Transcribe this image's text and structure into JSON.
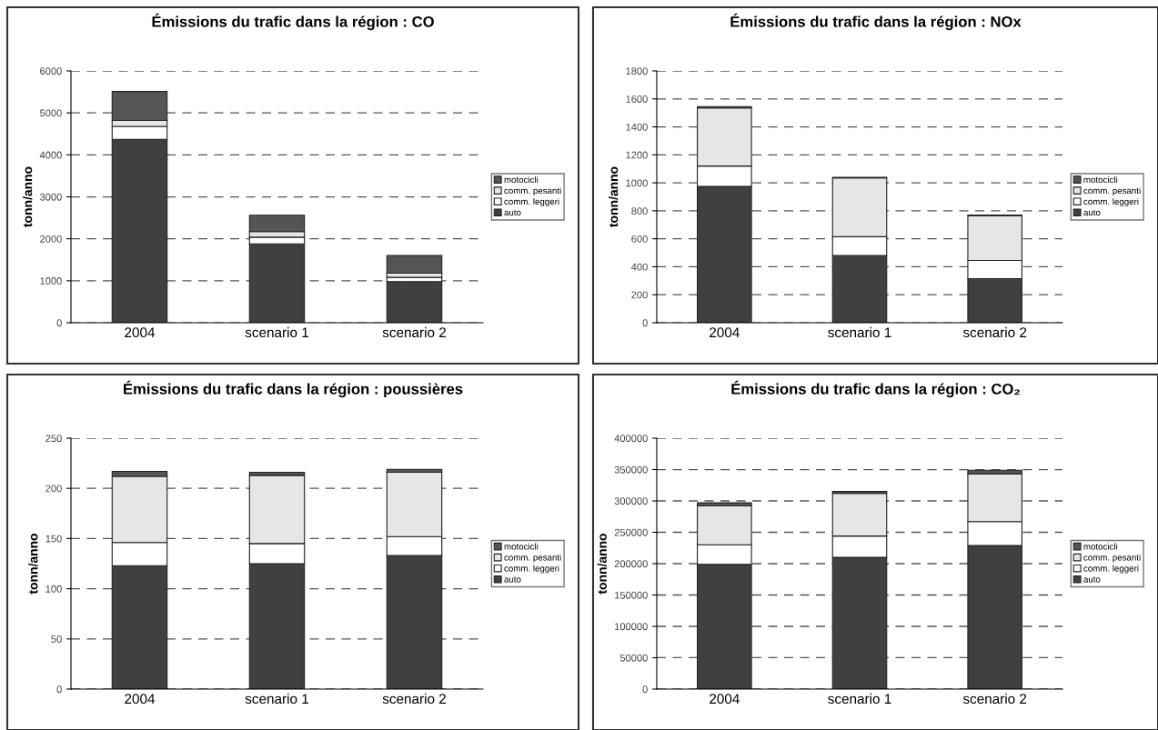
{
  "chart_data": [
    {
      "type": "bar",
      "stacked": true,
      "title": "Émissions du trafic dans la région : CO",
      "ylabel": "tonn/anno",
      "categories": [
        "2004",
        "scenario 1",
        "scenario 2"
      ],
      "ylim": [
        0,
        6000
      ],
      "yticks": [
        0,
        1000,
        2000,
        3000,
        4000,
        5000,
        6000
      ],
      "grid": "y",
      "legend": "right",
      "series": [
        {
          "name": "auto",
          "color": "#404040",
          "values": [
            4370,
            1880,
            980
          ]
        },
        {
          "name": "comm. leggeri",
          "color": "#ffffff",
          "values": [
            310,
            160,
            100
          ]
        },
        {
          "name": "comm. pesanti",
          "color": "#e6e6e6",
          "values": [
            140,
            130,
            100
          ]
        },
        {
          "name": "motocicli",
          "color": "#555555",
          "values": [
            690,
            390,
            420
          ]
        }
      ]
    },
    {
      "type": "bar",
      "stacked": true,
      "title": "Émissions du trafic dans la région : NOx",
      "ylabel": "tonn/anno",
      "categories": [
        "2004",
        "scenario 1",
        "scenario 2"
      ],
      "ylim": [
        0,
        1800
      ],
      "yticks": [
        0,
        200,
        400,
        600,
        800,
        1000,
        1200,
        1400,
        1600,
        1800
      ],
      "grid": "y",
      "legend": "right",
      "series": [
        {
          "name": "auto",
          "color": "#404040",
          "values": [
            975,
            480,
            315
          ]
        },
        {
          "name": "comm. leggeri",
          "color": "#ffffff",
          "values": [
            145,
            135,
            130
          ]
        },
        {
          "name": "comm. pesanti",
          "color": "#e6e6e6",
          "values": [
            415,
            420,
            320
          ]
        },
        {
          "name": "motocicli",
          "color": "#555555",
          "values": [
            10,
            5,
            5
          ]
        }
      ]
    },
    {
      "type": "bar",
      "stacked": true,
      "title": "Émissions du trafic dans la région : poussières",
      "ylabel": "tonn/anno",
      "categories": [
        "2004",
        "scenario 1",
        "scenario 2"
      ],
      "ylim": [
        0,
        250
      ],
      "yticks": [
        0,
        50,
        100,
        150,
        200,
        250
      ],
      "grid": "y",
      "legend": "right",
      "series": [
        {
          "name": "auto",
          "color": "#404040",
          "values": [
            123,
            125,
            133
          ]
        },
        {
          "name": "comm. leggeri",
          "color": "#ffffff",
          "values": [
            23,
            20,
            19
          ]
        },
        {
          "name": "comm. pesanti",
          "color": "#e6e6e6",
          "values": [
            66,
            68,
            64
          ]
        },
        {
          "name": "motocicli",
          "color": "#555555",
          "values": [
            5,
            3,
            3
          ]
        }
      ]
    },
    {
      "type": "bar",
      "stacked": true,
      "title": "Émissions du trafic dans la région : CO₂",
      "ylabel": "tonn/anno",
      "categories": [
        "2004",
        "scenario 1",
        "scenario 2"
      ],
      "ylim": [
        0,
        400000
      ],
      "yticks": [
        0,
        50000,
        100000,
        150000,
        200000,
        250000,
        300000,
        350000,
        400000
      ],
      "grid": "y",
      "legend": "right",
      "series": [
        {
          "name": "auto",
          "color": "#404040",
          "values": [
            199000,
            210000,
            229000
          ]
        },
        {
          "name": "comm. leggeri",
          "color": "#ffffff",
          "values": [
            31000,
            34000,
            38000
          ]
        },
        {
          "name": "comm. pesanti",
          "color": "#e6e6e6",
          "values": [
            62000,
            68000,
            76000
          ]
        },
        {
          "name": "motocicli",
          "color": "#555555",
          "values": [
            5000,
            3000,
            6000
          ]
        }
      ]
    }
  ]
}
